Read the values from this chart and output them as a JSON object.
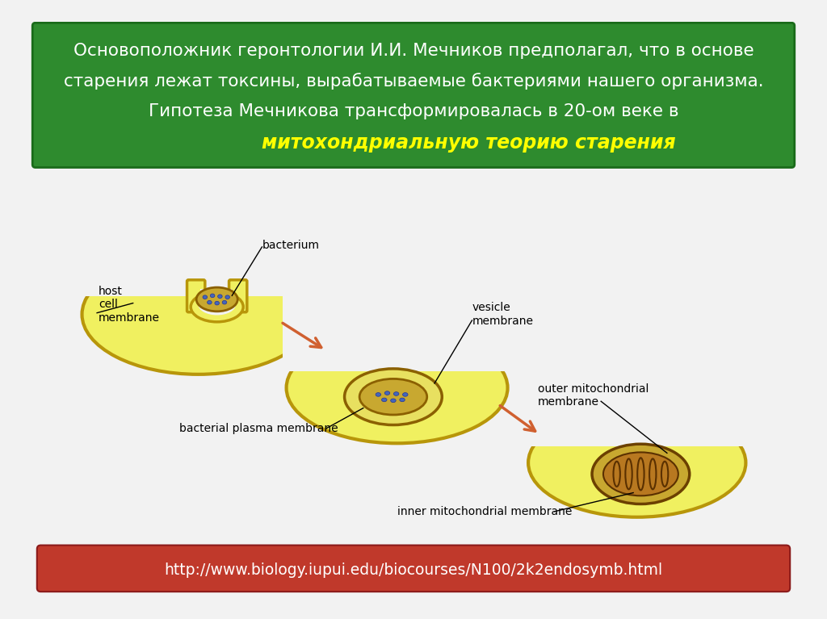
{
  "bg_color": "#f2f2f2",
  "header_bg": "#2e8b2e",
  "header_text_line1": "Основоположник геронтологии И.И. Мечников предполагал, что в основе",
  "header_text_line2": "старения лежат токсины, вырабатываемые бактериями нашего организма.",
  "header_text_line3": "Гипотеза Мечникова трансформировалась в 20-ом веке в",
  "header_text_line4": "митохондриальную теорию старения",
  "header_text_color": "#ffffff",
  "header_highlight_color": "#ffff00",
  "footer_bg": "#c0392b",
  "footer_text": "http://www.biology.iupui.edu/biocourses/N100/2k2endosymb.html",
  "footer_text_color": "#ffffff",
  "cell_fill": "#f0f060",
  "cell_border": "#b8960a",
  "label_color": "#000000",
  "arrow_color": "#d06030",
  "bact_fill": "#c8a830",
  "bact_border": "#8b6000",
  "blue_dot": "#4466bb",
  "mito_outer_fill": "#c8a830",
  "mito_inner_fill": "#b07820"
}
